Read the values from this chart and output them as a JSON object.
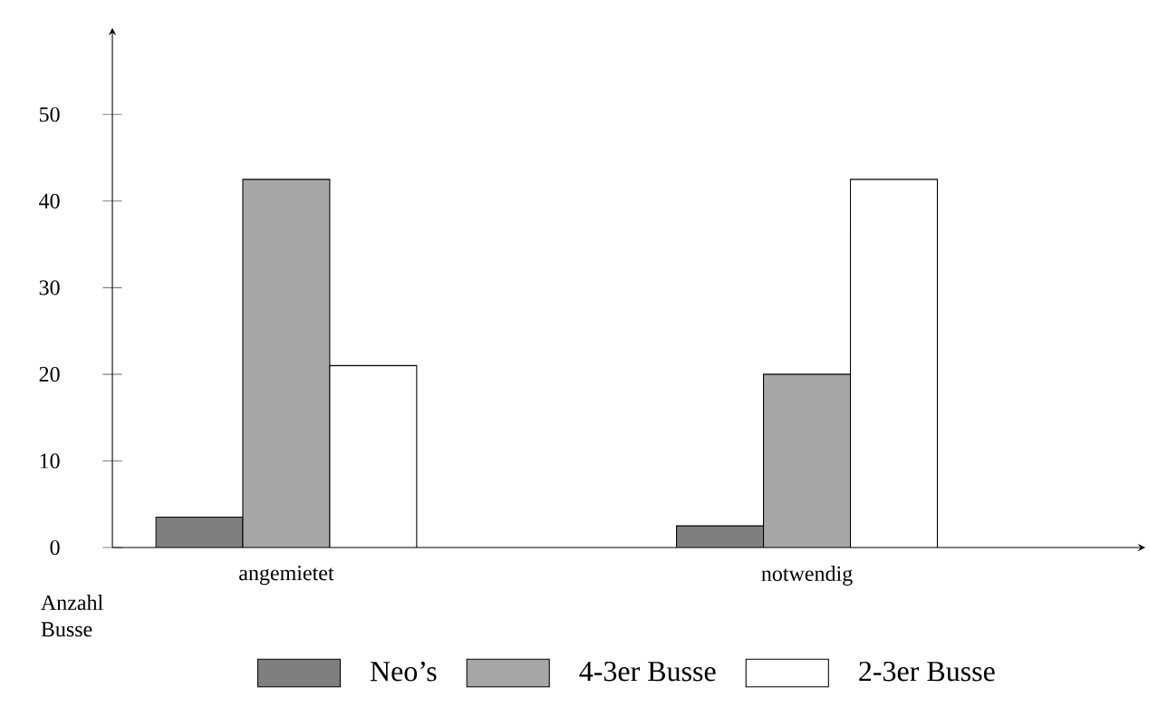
{
  "chart_data": {
    "type": "bar",
    "categories": [
      "angemietet",
      "notwendig"
    ],
    "ylabel": "Anzahl Busse",
    "series": [
      {
        "name": "Neo’s",
        "color": "#7f7f7f",
        "values": [
          3.5,
          2.5
        ]
      },
      {
        "name": "4-3er Busse",
        "color": "#a6a6a6",
        "values": [
          42.5,
          20
        ]
      },
      {
        "name": "2-3er Busse",
        "color": "#ffffff",
        "values": [
          21,
          42.5
        ]
      }
    ],
    "ylim": [
      0,
      60
    ],
    "yticks": [
      0,
      10,
      20,
      30,
      40,
      50
    ],
    "grid": false,
    "legend": "bottom"
  }
}
